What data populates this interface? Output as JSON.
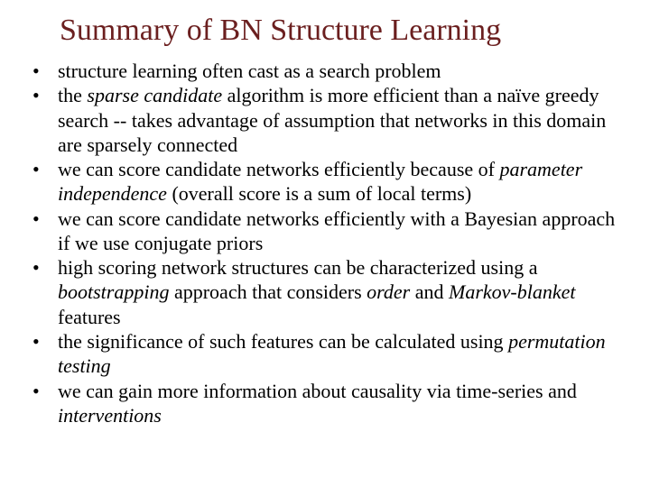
{
  "slide": {
    "title": "Summary of BN Structure Learning",
    "title_color": "#6b1f1f",
    "title_fontsize": 34,
    "body_fontsize": 22,
    "body_color": "#000000",
    "background_color": "#ffffff",
    "bullet_glyph": "•",
    "bullets": [
      {
        "plain": "structure learning often cast as a search problem",
        "html": "structure learning often cast as a search problem"
      },
      {
        "plain": "the sparse candidate algorithm is more efficient than a naïve greedy search -- takes advantage of assumption that networks in this domain are sparsely connected",
        "html": "the <i>sparse candidate</i> algorithm is more efficient than a naïve greedy search -- takes advantage of assumption that networks in this domain are sparsely connected"
      },
      {
        "plain": "we can score candidate networks efficiently because of parameter independence (overall score is a sum of local terms)",
        "html": "we can score candidate networks efficiently because of <i>parameter independence</i> (overall score is a sum of local terms)"
      },
      {
        "plain": "we can score candidate networks efficiently with a Bayesian approach if we use conjugate priors",
        "html": "we can score candidate networks efficiently with a Bayesian approach if we use conjugate priors"
      },
      {
        "plain": "high scoring network structures can be characterized using a bootstrapping approach that considers order and Markov-blanket features",
        "html": "high scoring network structures can be characterized using a <i>bootstrapping</i> approach that considers <i>order</i> and <i>Markov-blanket</i> features"
      },
      {
        "plain": "the significance of such features can be calculated using permutation testing",
        "html": "the significance of such features can be calculated using <i>permutation testing</i>"
      },
      {
        "plain": "we can gain more information about causality via time-series and interventions",
        "html": "we can gain more information about causality via time-series and <i>interventions</i>"
      }
    ]
  }
}
